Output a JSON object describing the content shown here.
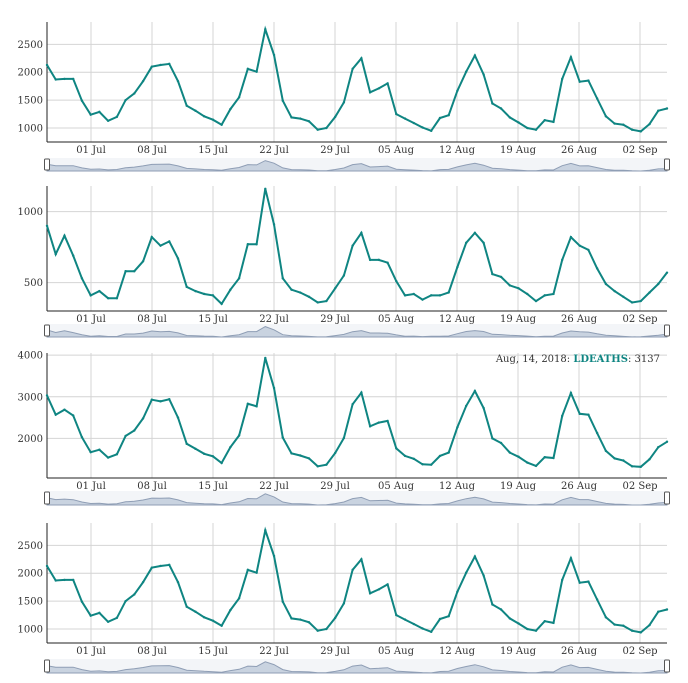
{
  "chart_data": [
    {
      "type": "line",
      "series_name": "",
      "ylim": [
        750,
        2900
      ],
      "yticks": [
        1000,
        1500,
        2000,
        2500
      ],
      "xticks": [
        "01 Jul",
        "08 Jul",
        "15 Jul",
        "22 Jul",
        "29 Jul",
        "05 Aug",
        "12 Aug",
        "19 Aug",
        "26 Aug",
        "02 Sep"
      ],
      "values": [
        2130,
        1870,
        1880,
        1880,
        1490,
        1240,
        1290,
        1130,
        1200,
        1500,
        1620,
        1840,
        2100,
        2130,
        2150,
        1840,
        1400,
        1310,
        1210,
        1150,
        1060,
        1340,
        1550,
        2060,
        2010,
        2770,
        2310,
        1490,
        1190,
        1170,
        1120,
        970,
        1000,
        1200,
        1460,
        2060,
        2250,
        1640,
        1710,
        1800,
        1250,
        1170,
        1090,
        1010,
        950,
        1180,
        1230,
        1670,
        2010,
        2300,
        1960,
        1440,
        1350,
        1190,
        1100,
        1000,
        970,
        1140,
        1110,
        1880,
        2270,
        1830,
        1850,
        1530,
        1210,
        1080,
        1060,
        970,
        940,
        1070,
        1310,
        1350
      ],
      "legend": null
    },
    {
      "type": "line",
      "series_name": "",
      "ylim": [
        300,
        1180
      ],
      "yticks": [
        500,
        1000
      ],
      "xticks": [
        "01 Jul",
        "08 Jul",
        "15 Jul",
        "22 Jul",
        "29 Jul",
        "05 Aug",
        "12 Aug",
        "19 Aug",
        "26 Aug",
        "02 Sep"
      ],
      "values": [
        900,
        700,
        830,
        690,
        530,
        410,
        440,
        390,
        390,
        580,
        580,
        650,
        820,
        760,
        790,
        670,
        470,
        440,
        420,
        410,
        350,
        450,
        530,
        770,
        770,
        1160,
        910,
        530,
        450,
        430,
        400,
        360,
        370,
        460,
        550,
        760,
        850,
        660,
        660,
        640,
        510,
        410,
        420,
        380,
        410,
        410,
        430,
        610,
        780,
        850,
        780,
        560,
        540,
        480,
        460,
        420,
        370,
        410,
        420,
        660,
        820,
        760,
        730,
        600,
        490,
        440,
        400,
        360,
        370,
        430,
        490,
        570
      ],
      "legend": null
    },
    {
      "type": "line",
      "series_name": "LDEATHS",
      "ylim": [
        1050,
        4050
      ],
      "yticks": [
        2000,
        3000,
        4000
      ],
      "xticks": [
        "01 Jul",
        "08 Jul",
        "15 Jul",
        "22 Jul",
        "29 Jul",
        "05 Aug",
        "12 Aug",
        "19 Aug",
        "26 Aug",
        "02 Sep"
      ],
      "values": [
        3030,
        2570,
        2690,
        2550,
        2030,
        1670,
        1730,
        1540,
        1620,
        2060,
        2190,
        2480,
        2930,
        2890,
        2940,
        2500,
        1870,
        1750,
        1630,
        1570,
        1410,
        1790,
        2070,
        2830,
        2770,
        3930,
        3210,
        2020,
        1640,
        1590,
        1520,
        1330,
        1370,
        1650,
        2010,
        2820,
        3100,
        2290,
        2380,
        2420,
        1760,
        1580,
        1510,
        1380,
        1370,
        1580,
        1660,
        2270,
        2780,
        3137,
        2730,
        2000,
        1890,
        1660,
        1560,
        1420,
        1340,
        1550,
        1530,
        2540,
        3090,
        2590,
        2570,
        2130,
        1700,
        1520,
        1470,
        1330,
        1320,
        1500,
        1790,
        1920
      ],
      "legend": {
        "date": "Aug, 14, 2018",
        "name": "LDEATHS",
        "value": "3137"
      }
    },
    {
      "type": "line",
      "series_name": "",
      "ylim": [
        750,
        2900
      ],
      "yticks": [
        1000,
        1500,
        2000,
        2500
      ],
      "xticks": [
        "01 Jul",
        "08 Jul",
        "15 Jul",
        "22 Jul",
        "29 Jul",
        "05 Aug",
        "12 Aug",
        "19 Aug",
        "26 Aug",
        "02 Sep"
      ],
      "values": [
        2130,
        1870,
        1880,
        1880,
        1490,
        1240,
        1290,
        1130,
        1200,
        1500,
        1620,
        1840,
        2100,
        2130,
        2150,
        1840,
        1400,
        1310,
        1210,
        1150,
        1060,
        1340,
        1550,
        2060,
        2010,
        2770,
        2310,
        1490,
        1190,
        1170,
        1120,
        970,
        1000,
        1200,
        1460,
        2060,
        2250,
        1640,
        1710,
        1800,
        1250,
        1170,
        1090,
        1010,
        950,
        1180,
        1230,
        1670,
        2010,
        2300,
        1960,
        1440,
        1350,
        1190,
        1100,
        1000,
        970,
        1140,
        1110,
        1880,
        2270,
        1830,
        1850,
        1530,
        1210,
        1080,
        1060,
        970,
        940,
        1070,
        1310,
        1350
      ],
      "legend": null
    }
  ],
  "style": {
    "line_color": "#0f8582",
    "grid_color": "#d4d4d4",
    "range_fill": "#c9d3e0"
  }
}
